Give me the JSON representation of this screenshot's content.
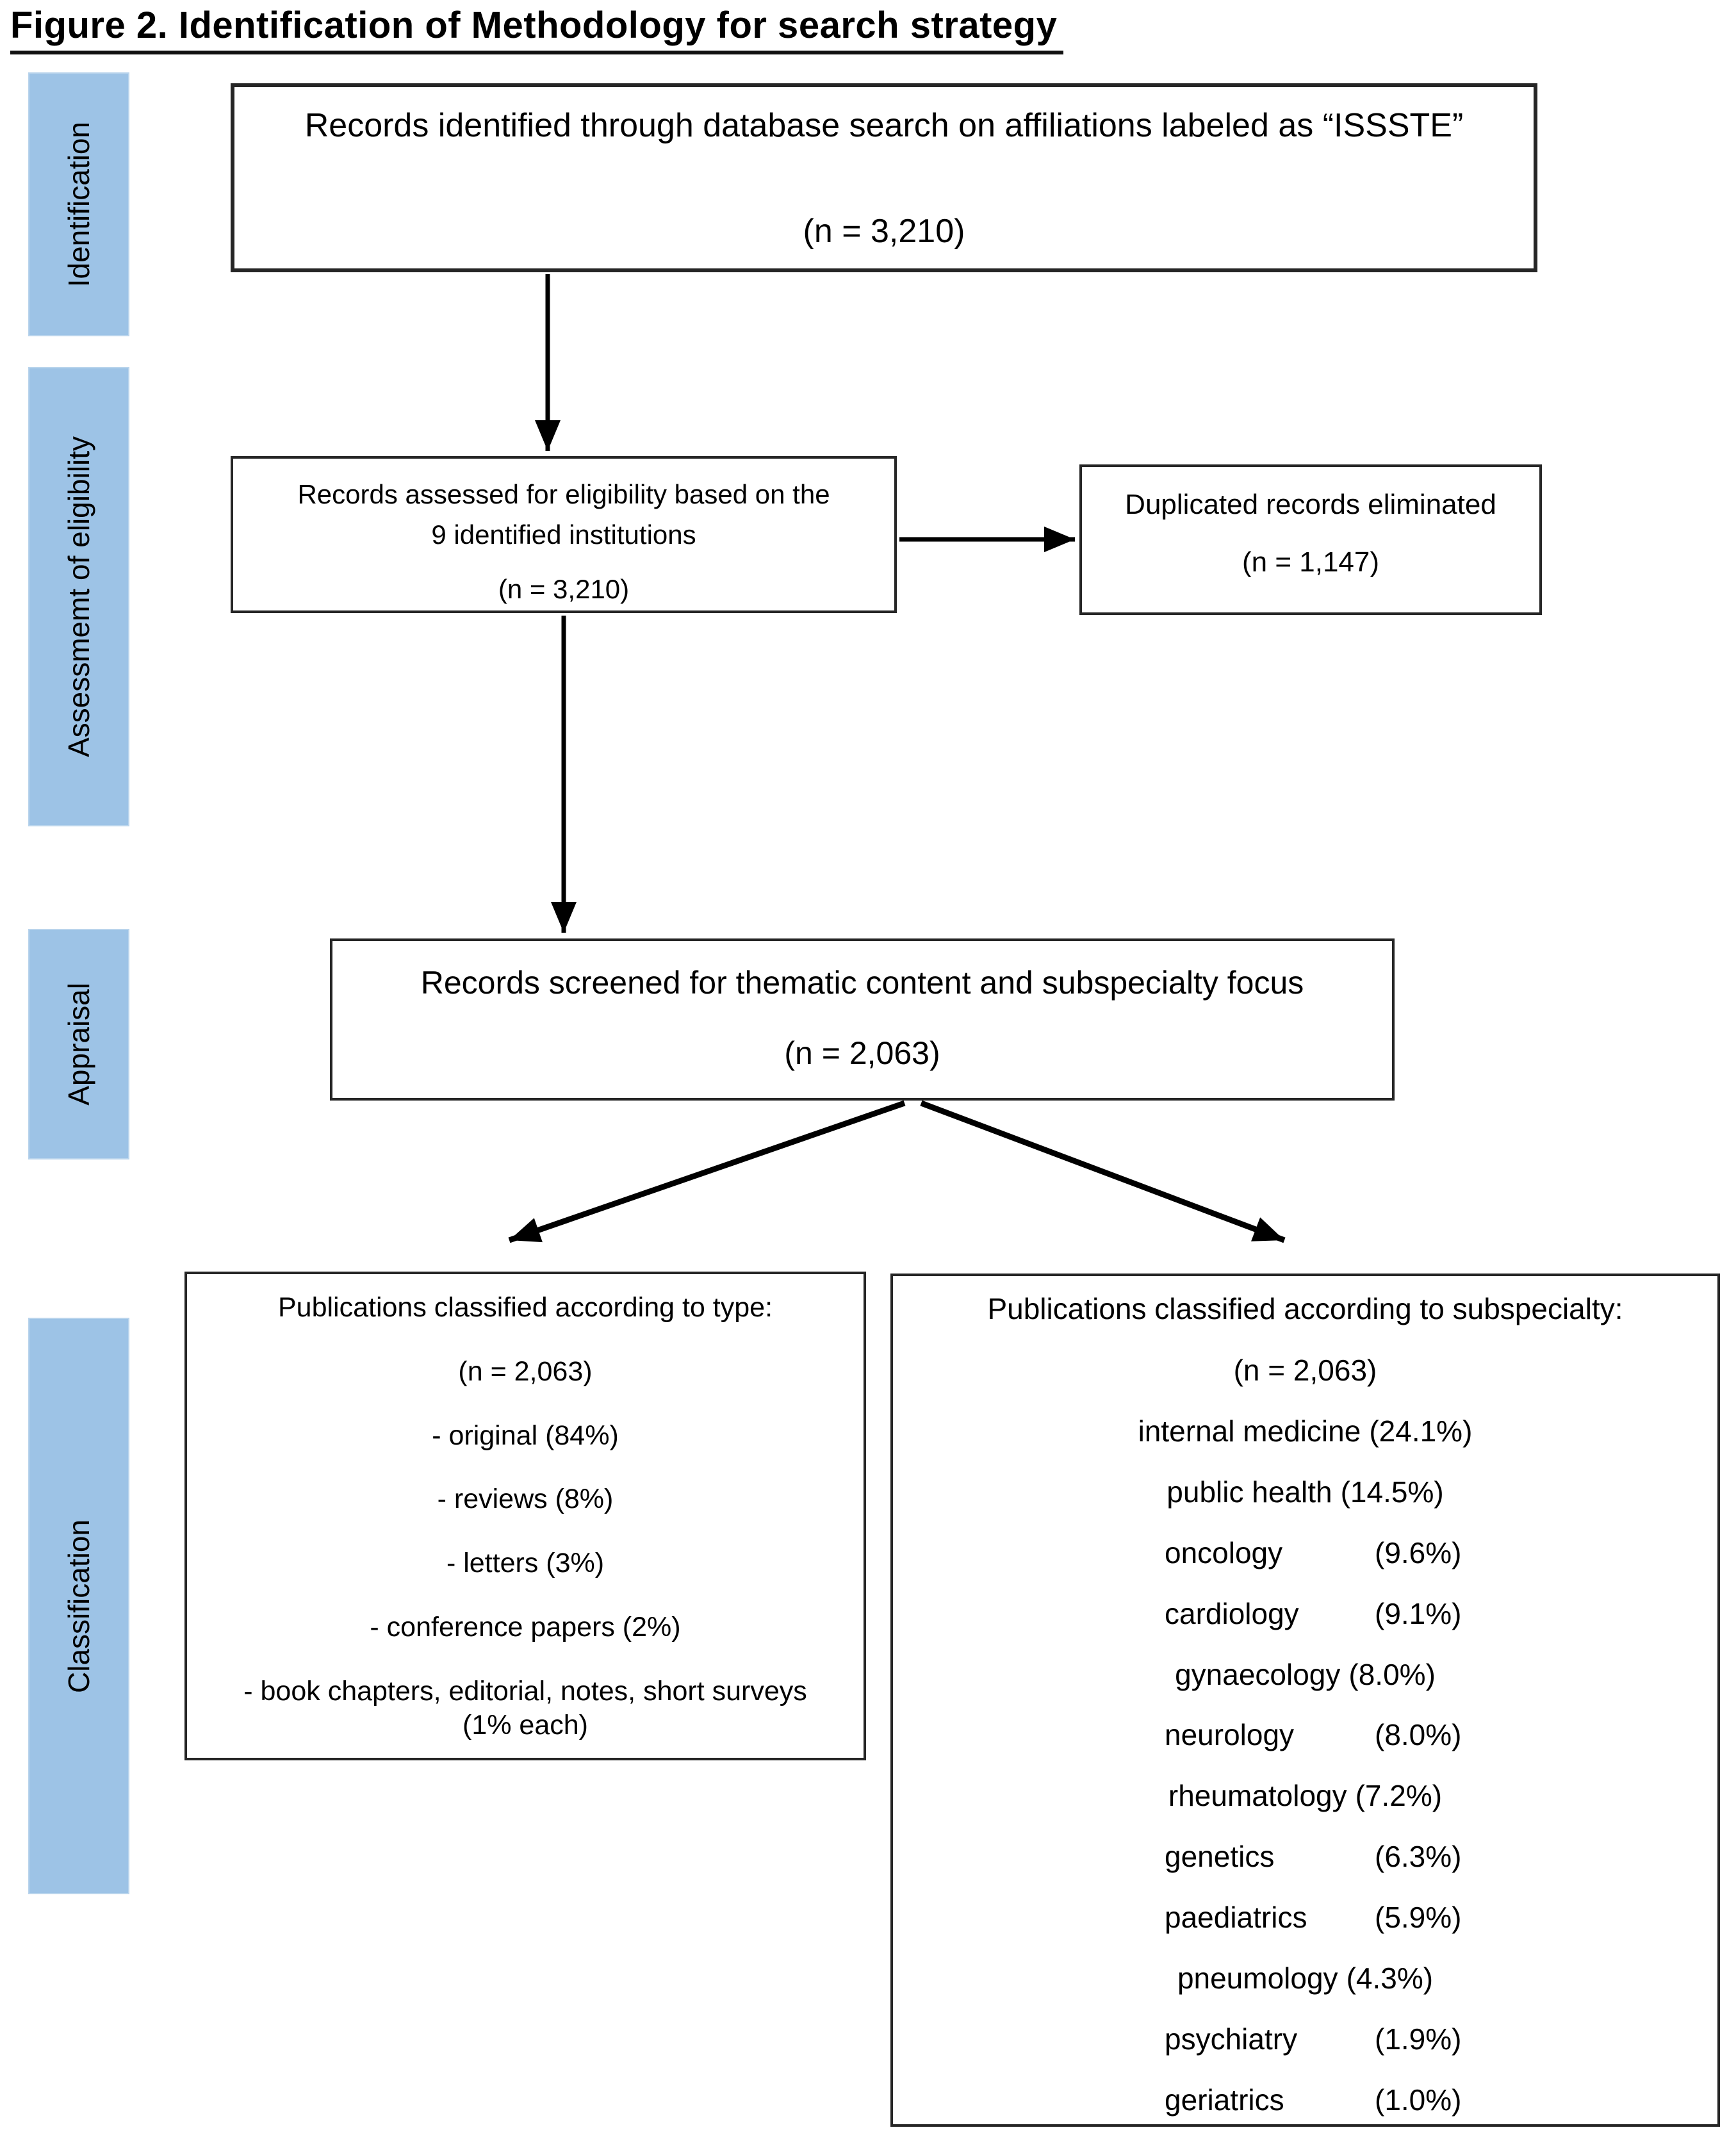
{
  "figure": {
    "title": "Figure 2. Identification of Methodology for search strategy"
  },
  "stages": [
    {
      "label": "Identification"
    },
    {
      "label": "Assessmemt of eligibility"
    },
    {
      "label": "Appraisal"
    },
    {
      "label": "Classification"
    }
  ],
  "boxes": {
    "identified": {
      "line1": "Records identified through database search on affiliations labeled as “ISSSTE”",
      "n": "(n = 3,210)"
    },
    "assessed": {
      "line1": "Records assessed for eligibility based on the",
      "line2": "9 identified institutions",
      "n": "(n = 3,210)"
    },
    "duplicated": {
      "line1": "Duplicated records eliminated",
      "n": "(n = 1,147)"
    },
    "screened": {
      "line1": "Records screened for thematic content and subspecialty focus",
      "n": "(n = 2,063)"
    },
    "by_type": {
      "title": "Publications classified according to type:",
      "n": "(n = 2,063)",
      "items": [
        "- original (84%)",
        "- reviews (8%)",
        "- letters (3%)",
        "- conference papers (2%)",
        "- book chapters, editorial, notes, short surveys (1% each)"
      ]
    },
    "by_subspecialty": {
      "title": "Publications classified according to subspecialty:",
      "n": "(n = 2,063)",
      "items": [
        {
          "name": "internal medicine",
          "pct": "(24.1%)",
          "tab": false
        },
        {
          "name": "public health",
          "pct": "(14.5%)",
          "tab": false
        },
        {
          "name": "oncology",
          "pct": "(9.6%)",
          "tab": true
        },
        {
          "name": "cardiology",
          "pct": "(9.1%)",
          "tab": true
        },
        {
          "name": "gynaecology",
          "pct": "(8.0%)",
          "tab": false
        },
        {
          "name": "neurology",
          "pct": "(8.0%)",
          "tab": true
        },
        {
          "name": "rheumatology",
          "pct": "(7.2%)",
          "tab": false
        },
        {
          "name": "genetics",
          "pct": "(6.3%)",
          "tab": true
        },
        {
          "name": "paediatrics",
          "pct": "(5.9%)",
          "tab": true
        },
        {
          "name": "pneumology",
          "pct": "(4.3%)",
          "tab": false
        },
        {
          "name": "psychiatry",
          "pct": "(1.9%)",
          "tab": true
        },
        {
          "name": "geriatrics",
          "pct": "(1.0%)",
          "tab": true
        }
      ]
    }
  },
  "colors": {
    "stage_fill": "#9DC3E6",
    "box_border": "#262626",
    "arrow": "#000000"
  }
}
